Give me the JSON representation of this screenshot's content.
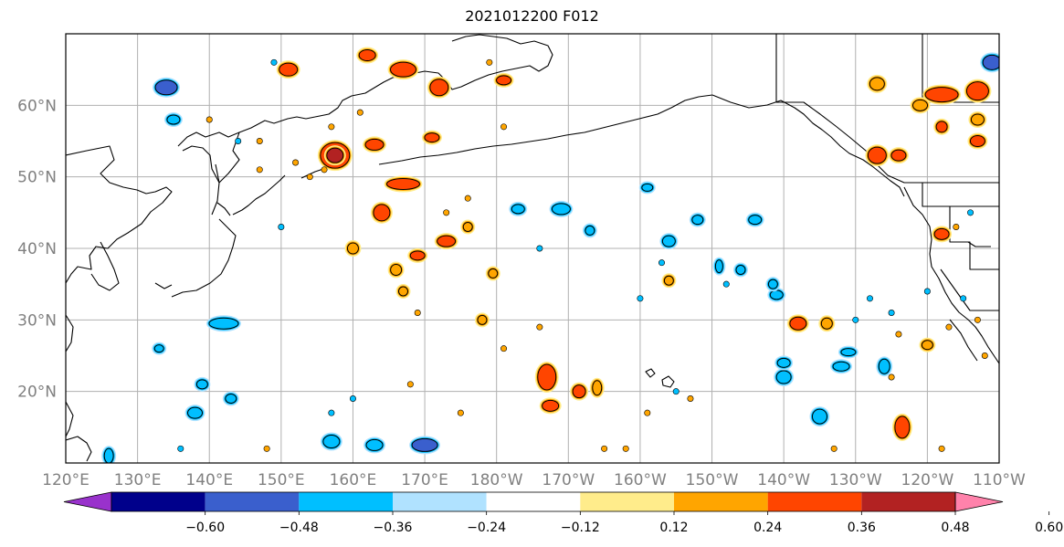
{
  "title": "2021012200 F012",
  "map": {
    "lon_range": [
      120,
      250
    ],
    "lat_range": [
      10,
      70
    ],
    "gridlines": true,
    "lon_ticks": [
      120,
      130,
      140,
      150,
      160,
      170,
      180,
      190,
      200,
      210,
      220,
      230,
      240,
      250
    ],
    "lon_tick_labels": [
      "120°E",
      "130°E",
      "140°E",
      "150°E",
      "160°E",
      "170°E",
      "180°W",
      "170°W",
      "160°W",
      "150°W",
      "140°W",
      "130°W",
      "120°W",
      "110°W"
    ],
    "lat_ticks": [
      20,
      30,
      40,
      50,
      60
    ],
    "lat_tick_labels": [
      "20°N",
      "30°N",
      "40°N",
      "50°N",
      "60°N"
    ],
    "tick_label_color": "#808080"
  },
  "colorbar": {
    "levels": [
      -0.72,
      -0.6,
      -0.48,
      -0.36,
      -0.24,
      -0.12,
      0.12,
      0.24,
      0.36,
      0.48,
      0.6,
      0.72
    ],
    "colors": [
      "#9932CC",
      "#00008B",
      "#3A5FCD",
      "#00BFFF",
      "#B0E2FF",
      "#FFFFFF",
      "#FFEC8B",
      "#FFA500",
      "#FF4500",
      "#B22222",
      "#FF82AB"
    ],
    "tick_labels": [
      "−0.60",
      "−0.48",
      "−0.36",
      "−0.24",
      "−0.12",
      "0.12",
      "0.24",
      "0.36",
      "0.48",
      "0.60"
    ],
    "extend": "both"
  }
}
